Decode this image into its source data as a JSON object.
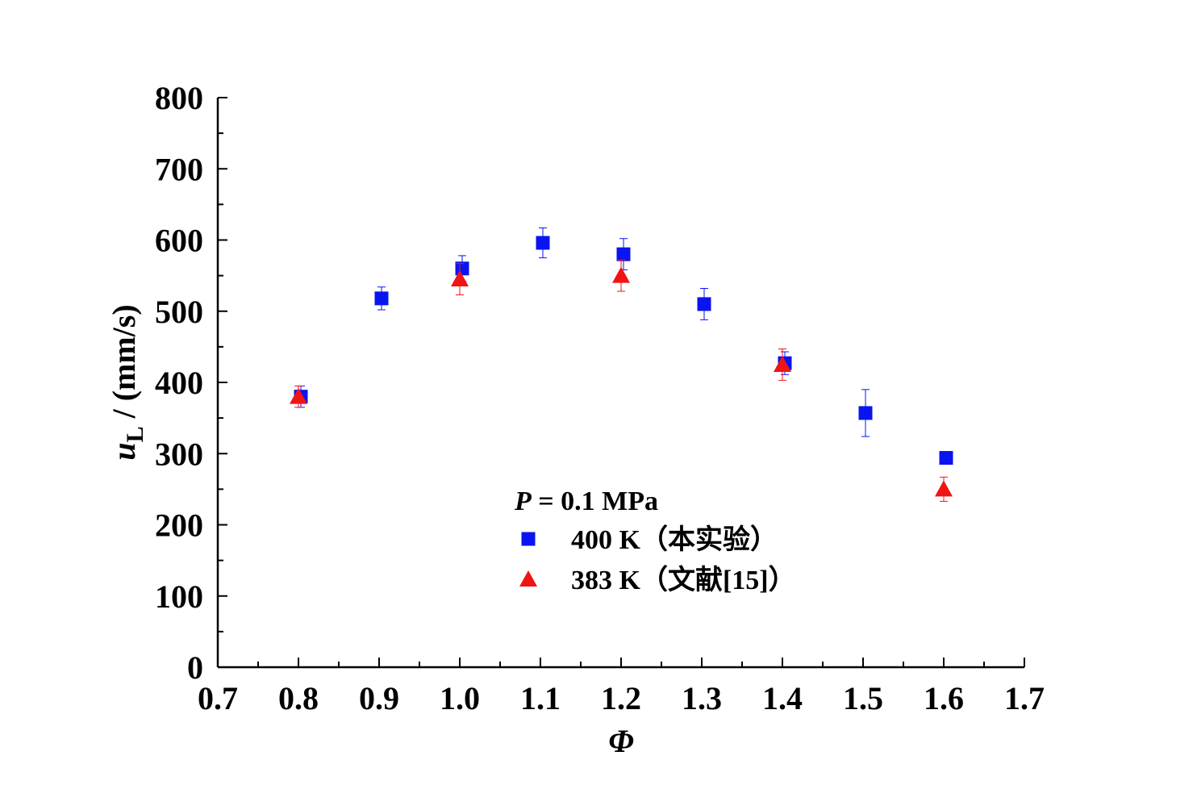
{
  "chart_data": {
    "type": "scatter",
    "xlabel": "Φ",
    "ylabel_main": "u",
    "ylabel_sub": "L",
    "ylabel_unit": " / (mm/s)",
    "xlim": [
      0.7,
      1.7
    ],
    "ylim": [
      0,
      800
    ],
    "x_ticks": [
      "0.7",
      "0.8",
      "0.9",
      "1.0",
      "1.1",
      "1.2",
      "1.3",
      "1.4",
      "1.5",
      "1.6",
      "1.7"
    ],
    "y_ticks": [
      "0",
      "100",
      "200",
      "300",
      "400",
      "500",
      "600",
      "700",
      "800"
    ],
    "grid": false,
    "legend_position": "lower-center",
    "legend_title_var": "P",
    "legend_title_rest": " = 0.1 MPa",
    "series": [
      {
        "name": "400 K（本实验）",
        "marker": "square",
        "color": "#0a14f0",
        "points": [
          {
            "x": 0.8,
            "y": 380,
            "err": 15
          },
          {
            "x": 0.9,
            "y": 518,
            "err": 16
          },
          {
            "x": 1.0,
            "y": 560,
            "err": 18
          },
          {
            "x": 1.1,
            "y": 596,
            "err": 21
          },
          {
            "x": 1.2,
            "y": 580,
            "err": 22
          },
          {
            "x": 1.3,
            "y": 510,
            "err": 22
          },
          {
            "x": 1.4,
            "y": 427,
            "err": 16
          },
          {
            "x": 1.5,
            "y": 357,
            "err": 33
          },
          {
            "x": 1.6,
            "y": 294,
            "err": 0
          }
        ]
      },
      {
        "name": "383 K（文献[15]）",
        "marker": "triangle",
        "color": "#f01414",
        "points": [
          {
            "x": 0.8,
            "y": 380,
            "err": 15
          },
          {
            "x": 1.0,
            "y": 545,
            "err": 22
          },
          {
            "x": 1.2,
            "y": 550,
            "err": 22
          },
          {
            "x": 1.4,
            "y": 425,
            "err": 22
          },
          {
            "x": 1.6,
            "y": 250,
            "err": 17
          }
        ]
      }
    ]
  }
}
